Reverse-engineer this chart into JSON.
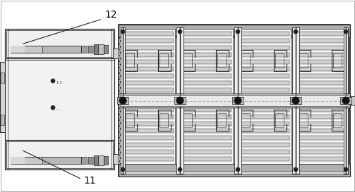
{
  "bg_color": "#ffffff",
  "dark": "#222222",
  "mid_dark": "#444444",
  "gray1": "#bbbbbb",
  "gray2": "#cccccc",
  "gray3": "#dddddd",
  "gray4": "#eeeeee",
  "stipple": "#b0b0b0",
  "white": "#f8f8f8",
  "label_12": "12",
  "label_11": "11",
  "figsize": [
    5.03,
    2.73
  ],
  "dpi": 100
}
